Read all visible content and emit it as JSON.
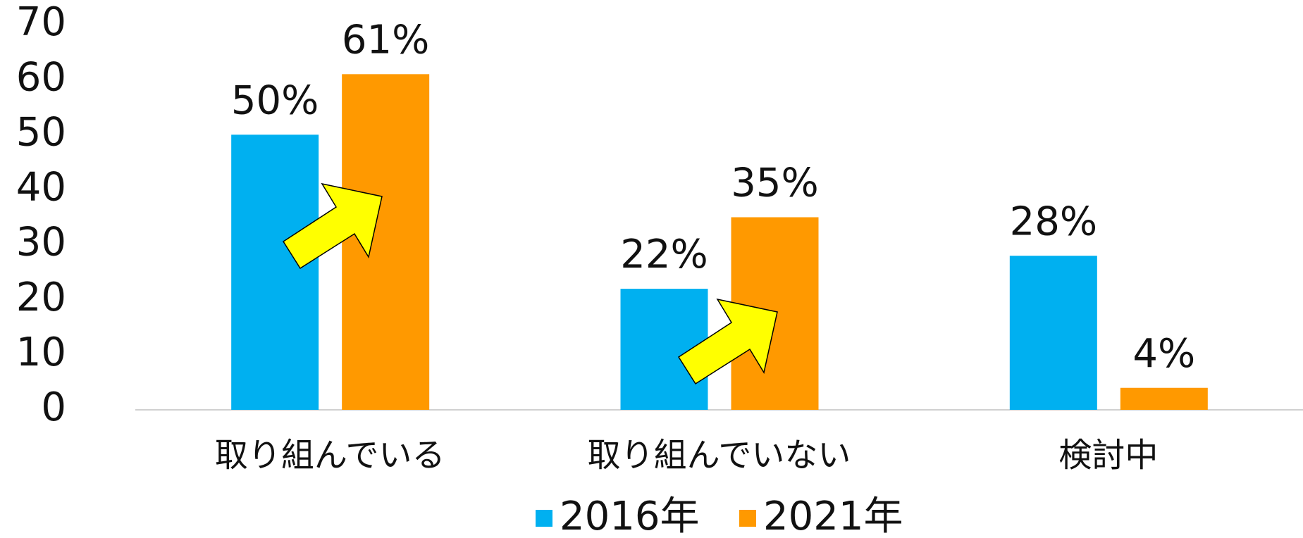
{
  "chart_data": {
    "type": "bar",
    "categories": [
      "取り組んでいる",
      "取り組んでいない",
      "検討中"
    ],
    "series": [
      {
        "name": "2016年",
        "color": "#00b0f0",
        "values": [
          50,
          22,
          28
        ],
        "value_labels": [
          "50%",
          "22%",
          "28%"
        ]
      },
      {
        "name": "2021年",
        "color": "#ff9900",
        "values": [
          61,
          35,
          4
        ],
        "value_labels": [
          "61%",
          "35%",
          "4%"
        ]
      }
    ],
    "ylim": [
      0,
      70
    ],
    "yticks": [
      0,
      10,
      20,
      30,
      40,
      50,
      60,
      70
    ],
    "grid": false,
    "legend": "bottom"
  }
}
